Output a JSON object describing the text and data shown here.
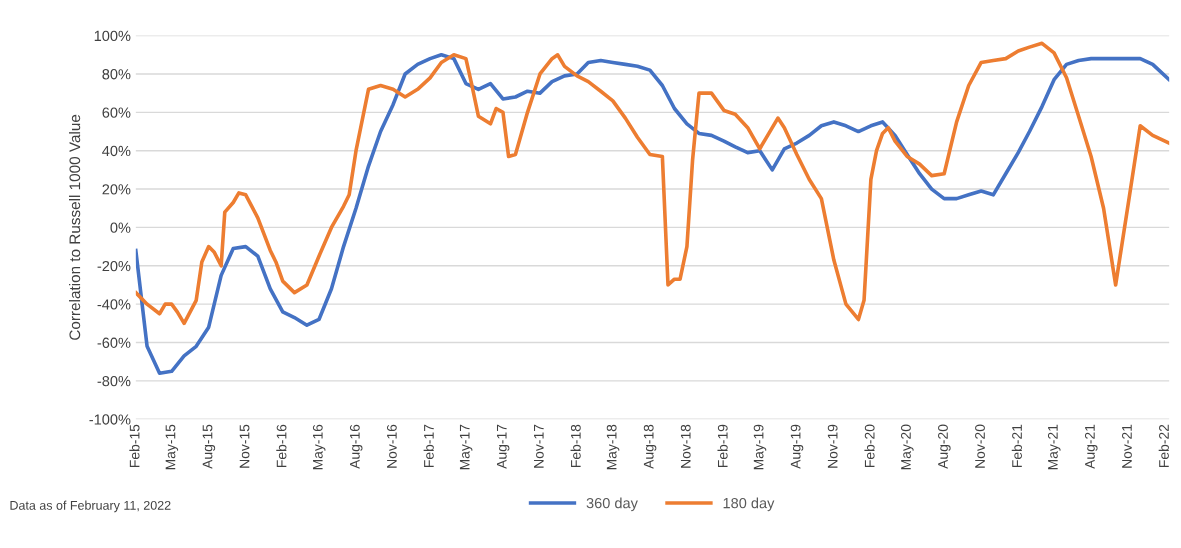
{
  "chart_data": {
    "type": "line",
    "ylabel": "Correlation to Russell 1000 Value",
    "annotations": [
      "Data as of February 11, 2022"
    ],
    "ylim": [
      -100,
      100
    ],
    "yticks": [
      {
        "value": -100,
        "label": "-100%"
      },
      {
        "value": -80,
        "label": "-80%"
      },
      {
        "value": -60,
        "label": "-60%"
      },
      {
        "value": -40,
        "label": "-40%"
      },
      {
        "value": -20,
        "label": "-20%"
      },
      {
        "value": 0,
        "label": "0%"
      },
      {
        "value": 20,
        "label": "20%"
      },
      {
        "value": 40,
        "label": "40%"
      },
      {
        "value": 60,
        "label": "60%"
      },
      {
        "value": 80,
        "label": "80%"
      },
      {
        "value": 100,
        "label": "100%"
      }
    ],
    "xlim": [
      "2015-02-01",
      "2022-02-11"
    ],
    "xticks": [
      {
        "value": "2015-02-01",
        "label": "Feb-15"
      },
      {
        "value": "2015-05-01",
        "label": "May-15"
      },
      {
        "value": "2015-08-01",
        "label": "Aug-15"
      },
      {
        "value": "2015-11-01",
        "label": "Nov-15"
      },
      {
        "value": "2016-02-01",
        "label": "Feb-16"
      },
      {
        "value": "2016-05-01",
        "label": "May-16"
      },
      {
        "value": "2016-08-01",
        "label": "Aug-16"
      },
      {
        "value": "2016-11-01",
        "label": "Nov-16"
      },
      {
        "value": "2017-02-01",
        "label": "Feb-17"
      },
      {
        "value": "2017-05-01",
        "label": "May-17"
      },
      {
        "value": "2017-08-01",
        "label": "Aug-17"
      },
      {
        "value": "2017-11-01",
        "label": "Nov-17"
      },
      {
        "value": "2018-02-01",
        "label": "Feb-18"
      },
      {
        "value": "2018-05-01",
        "label": "May-18"
      },
      {
        "value": "2018-08-01",
        "label": "Aug-18"
      },
      {
        "value": "2018-11-01",
        "label": "Nov-18"
      },
      {
        "value": "2019-02-01",
        "label": "Feb-19"
      },
      {
        "value": "2019-05-01",
        "label": "May-19"
      },
      {
        "value": "2019-08-01",
        "label": "Aug-19"
      },
      {
        "value": "2019-11-01",
        "label": "Nov-19"
      },
      {
        "value": "2020-02-01",
        "label": "Feb-20"
      },
      {
        "value": "2020-05-01",
        "label": "May-20"
      },
      {
        "value": "2020-08-01",
        "label": "Aug-20"
      },
      {
        "value": "2020-11-01",
        "label": "Nov-20"
      },
      {
        "value": "2021-02-01",
        "label": "Feb-21"
      },
      {
        "value": "2021-05-01",
        "label": "May-21"
      },
      {
        "value": "2021-08-01",
        "label": "Aug-21"
      },
      {
        "value": "2021-11-01",
        "label": "Nov-21"
      },
      {
        "value": "2022-02-01",
        "label": "Feb-22"
      }
    ],
    "grid": "y",
    "legend": "bottom",
    "marker": "none",
    "line_style": "solid",
    "series": [
      {
        "name": "360 day",
        "color": "#4472c4",
        "x": [
          "2015-02-01",
          "2015-03-01",
          "2015-04-01",
          "2015-05-01",
          "2015-06-01",
          "2015-07-01",
          "2015-08-01",
          "2015-09-01",
          "2015-10-01",
          "2015-11-01",
          "2015-12-01",
          "2016-01-01",
          "2016-02-01",
          "2016-03-01",
          "2016-04-01",
          "2016-05-01",
          "2016-06-01",
          "2016-07-01",
          "2016-08-01",
          "2016-09-01",
          "2016-10-01",
          "2016-11-01",
          "2016-12-01",
          "2017-01-01",
          "2017-02-01",
          "2017-03-01",
          "2017-04-01",
          "2017-05-01",
          "2017-06-01",
          "2017-07-01",
          "2017-08-01",
          "2017-09-01",
          "2017-10-01",
          "2017-11-01",
          "2017-12-01",
          "2018-01-01",
          "2018-02-01",
          "2018-03-01",
          "2018-04-01",
          "2018-05-01",
          "2018-06-01",
          "2018-07-01",
          "2018-08-01",
          "2018-09-01",
          "2018-10-01",
          "2018-11-01",
          "2018-12-01",
          "2019-01-01",
          "2019-02-01",
          "2019-03-01",
          "2019-04-01",
          "2019-05-01",
          "2019-06-01",
          "2019-07-01",
          "2019-08-01",
          "2019-09-01",
          "2019-10-01",
          "2019-11-01",
          "2019-12-01",
          "2020-01-01",
          "2020-02-01",
          "2020-03-01",
          "2020-04-01",
          "2020-05-01",
          "2020-06-01",
          "2020-07-01",
          "2020-08-01",
          "2020-09-01",
          "2020-10-01",
          "2020-11-01",
          "2020-12-01",
          "2021-01-01",
          "2021-02-01",
          "2021-03-01",
          "2021-04-01",
          "2021-05-01",
          "2021-06-01",
          "2021-07-01",
          "2021-08-01",
          "2021-09-01",
          "2021-10-01",
          "2021-11-01",
          "2021-12-01",
          "2022-01-01",
          "2022-02-11"
        ],
        "values": [
          -12,
          -62,
          -76,
          -75,
          -67,
          -62,
          -52,
          -25,
          -11,
          -10,
          -15,
          -32,
          -44,
          -47,
          -51,
          -48,
          -32,
          -10,
          10,
          32,
          50,
          64,
          80,
          85,
          88,
          90,
          88,
          75,
          72,
          75,
          67,
          68,
          71,
          70,
          76,
          79,
          80,
          86,
          87,
          86,
          85,
          84,
          82,
          74,
          62,
          54,
          49,
          48,
          45,
          42,
          39,
          40,
          30,
          41,
          44,
          48,
          53,
          55,
          53,
          50,
          53,
          55,
          48,
          38,
          28,
          20,
          15,
          15,
          17,
          19,
          17,
          28,
          39,
          50,
          63,
          77,
          85,
          87,
          88,
          88,
          88,
          88,
          88,
          85,
          77
        ]
      },
      {
        "name": "180 day",
        "color": "#ed7d31",
        "x": [
          "2015-02-01",
          "2015-03-01",
          "2015-04-01",
          "2015-04-15",
          "2015-05-01",
          "2015-05-15",
          "2015-06-01",
          "2015-07-01",
          "2015-07-15",
          "2015-08-01",
          "2015-08-15",
          "2015-09-01",
          "2015-09-10",
          "2015-10-01",
          "2015-10-15",
          "2015-11-01",
          "2015-12-01",
          "2016-01-01",
          "2016-01-15",
          "2016-02-01",
          "2016-03-01",
          "2016-04-01",
          "2016-05-01",
          "2016-06-01",
          "2016-07-01",
          "2016-07-15",
          "2016-08-01",
          "2016-09-01",
          "2016-10-01",
          "2016-11-01",
          "2016-12-01",
          "2017-01-01",
          "2017-02-01",
          "2017-03-01",
          "2017-04-01",
          "2017-05-01",
          "2017-05-15",
          "2017-06-01",
          "2017-07-01",
          "2017-07-15",
          "2017-08-01",
          "2017-08-15",
          "2017-09-01",
          "2017-10-01",
          "2017-11-01",
          "2017-12-01",
          "2017-12-15",
          "2018-01-01",
          "2018-02-01",
          "2018-03-01",
          "2018-04-01",
          "2018-05-01",
          "2018-06-01",
          "2018-07-01",
          "2018-08-01",
          "2018-09-01",
          "2018-09-15",
          "2018-10-01",
          "2018-10-15",
          "2018-11-01",
          "2018-11-15",
          "2018-12-01",
          "2019-01-01",
          "2019-02-01",
          "2019-03-01",
          "2019-04-01",
          "2019-05-01",
          "2019-06-01",
          "2019-06-15",
          "2019-07-01",
          "2019-08-01",
          "2019-09-01",
          "2019-10-01",
          "2019-11-01",
          "2019-12-01",
          "2020-01-01",
          "2020-01-15",
          "2020-02-01",
          "2020-02-15",
          "2020-03-01",
          "2020-03-15",
          "2020-04-01",
          "2020-05-01",
          "2020-06-01",
          "2020-07-01",
          "2020-08-01",
          "2020-09-01",
          "2020-10-01",
          "2020-11-01",
          "2020-12-01",
          "2021-01-01",
          "2021-02-01",
          "2021-03-01",
          "2021-04-01",
          "2021-05-01",
          "2021-06-01",
          "2021-07-01",
          "2021-08-01",
          "2021-09-01",
          "2021-10-01",
          "2021-11-01",
          "2021-12-01",
          "2022-01-01",
          "2022-02-11"
        ],
        "values": [
          -34,
          -40,
          -45,
          -40,
          -40,
          -44,
          -50,
          -38,
          -18,
          -10,
          -13,
          -20,
          8,
          13,
          18,
          17,
          5,
          -12,
          -18,
          -28,
          -34,
          -30,
          -15,
          0,
          11,
          17,
          40,
          72,
          74,
          72,
          68,
          72,
          78,
          86,
          90,
          88,
          75,
          58,
          54,
          62,
          60,
          37,
          38,
          60,
          80,
          88,
          90,
          84,
          79,
          76,
          71,
          66,
          57,
          47,
          38,
          37,
          -30,
          -27,
          -27,
          -10,
          35,
          70,
          70,
          61,
          59,
          52,
          41,
          52,
          57,
          52,
          38,
          25,
          15,
          -17,
          -40,
          -48,
          -38,
          25,
          40,
          49,
          52,
          45,
          37,
          33,
          27,
          28,
          55,
          74,
          86,
          87,
          88,
          92,
          94,
          96,
          91,
          78,
          58,
          37,
          10,
          -30,
          12,
          53,
          48,
          44
        ]
      }
    ]
  }
}
